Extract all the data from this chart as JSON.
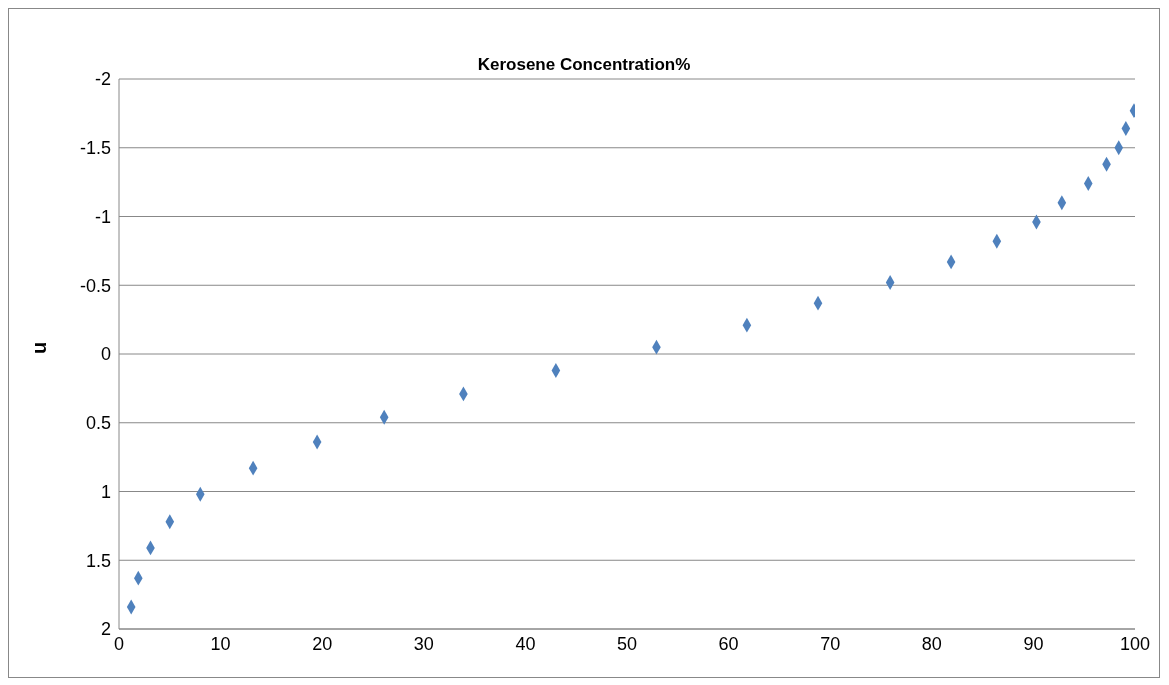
{
  "chart_data": {
    "type": "scatter",
    "title": "Kerosene Concentration%",
    "ylabel": "u",
    "x": [
      1.2,
      1.9,
      3.1,
      5.0,
      8.0,
      13.2,
      19.5,
      26.1,
      33.9,
      43.0,
      52.9,
      61.8,
      68.8,
      75.9,
      81.9,
      86.4,
      90.3,
      92.8,
      95.4,
      97.2,
      98.4,
      99.1,
      99.9
    ],
    "series": [
      {
        "color": "#4f81bd",
        "values": [
          1.84,
          1.63,
          1.41,
          1.22,
          1.02,
          0.83,
          0.64,
          0.46,
          0.29,
          0.12,
          -0.05,
          -0.21,
          -0.37,
          -0.52,
          -0.67,
          -0.82,
          -0.96,
          -1.1,
          -1.24,
          -1.38,
          -1.5,
          -1.64,
          -1.77
        ]
      }
    ],
    "xlim": [
      0,
      100
    ],
    "xticks": [
      0,
      10,
      20,
      30,
      40,
      50,
      60,
      70,
      80,
      90,
      100
    ],
    "ylim": [
      2,
      -2
    ],
    "yticks": [
      -2,
      -1.5,
      -1,
      -0.5,
      0,
      0.5,
      1,
      1.5,
      2
    ],
    "grid": "y",
    "marker": "diamond"
  }
}
